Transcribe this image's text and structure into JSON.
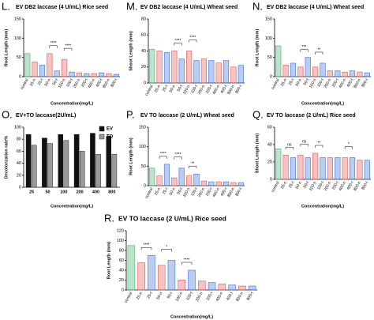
{
  "chart_data": [
    {
      "type": "bar",
      "panel_label": "L.",
      "title": "EV DB2 laccase (4 U/mL) Rice seed",
      "y_label": "Root Length (mm)",
      "x_label": "Concentration(mg/L)",
      "categories": [
        "control",
        "25-n",
        "25-t",
        "50-n",
        "50-t",
        "100-n",
        "100-t",
        "200-n",
        "200-t",
        "400-n",
        "400-t",
        "800-n",
        "800-t"
      ],
      "values": [
        60,
        38,
        30,
        60,
        15,
        45,
        12,
        10,
        8,
        8,
        10,
        8,
        6
      ],
      "colors": [
        "#3cb371",
        "#e05555",
        "#3a6fd8",
        "#e05555",
        "#3a6fd8",
        "#e05555",
        "#3a6fd8",
        "#e05555",
        "#3a6fd8",
        "#e05555",
        "#3a6fd8",
        "#e05555",
        "#3a6fd8"
      ],
      "ylim": [
        0,
        150
      ],
      "yticks": [
        0,
        50,
        100,
        150
      ],
      "annotations": [
        {
          "text": "****",
          "between": [
            3,
            4
          ]
        },
        {
          "text": "****",
          "between": [
            5,
            6
          ]
        }
      ]
    },
    {
      "type": "bar",
      "panel_label": "M.",
      "title": "EV DB2 laccase (4 U/mL) Wheat seed",
      "y_label": "Shoot Length (mm)",
      "categories": [
        "control",
        "25-n",
        "25-t",
        "50-n",
        "50-t",
        "100-n",
        "100-t",
        "200-n",
        "200-t",
        "400-n",
        "400-t",
        "800-n",
        "800-t"
      ],
      "values": [
        42,
        40,
        38,
        40,
        30,
        40,
        28,
        30,
        28,
        25,
        28,
        20,
        22
      ],
      "colors": [
        "#3cb371",
        "#e05555",
        "#3a6fd8",
        "#e05555",
        "#3a6fd8",
        "#e05555",
        "#3a6fd8",
        "#e05555",
        "#3a6fd8",
        "#e05555",
        "#3a6fd8",
        "#e05555",
        "#3a6fd8"
      ],
      "ylim": [
        0,
        80
      ],
      "yticks": [
        0,
        20,
        40,
        60,
        80
      ],
      "annotations": [
        {
          "text": "****",
          "between": [
            3,
            4
          ]
        },
        {
          "text": "****",
          "between": [
            5,
            6
          ]
        }
      ]
    },
    {
      "type": "bar",
      "panel_label": "N.",
      "title": "EV DB2 laccase (4 U/mL) Wheat seed",
      "y_label": "Root Length (mm)",
      "x_label": "Concentration(mg/L)",
      "categories": [
        "control",
        "25-n",
        "25-t",
        "50-n",
        "50-t",
        "100-n",
        "100-t",
        "200-n",
        "200-t",
        "400-n",
        "400-t",
        "800-n",
        "800-t"
      ],
      "values": [
        80,
        30,
        35,
        25,
        50,
        25,
        35,
        15,
        15,
        12,
        15,
        12,
        10
      ],
      "colors": [
        "#3cb371",
        "#e05555",
        "#3a6fd8",
        "#e05555",
        "#3a6fd8",
        "#e05555",
        "#3a6fd8",
        "#e05555",
        "#3a6fd8",
        "#e05555",
        "#3a6fd8",
        "#e05555",
        "#3a6fd8"
      ],
      "ylim": [
        0,
        150
      ],
      "yticks": [
        0,
        50,
        100,
        150
      ],
      "annotations": [
        {
          "text": "***",
          "between": [
            3,
            4
          ]
        },
        {
          "text": "**",
          "between": [
            5,
            6
          ]
        }
      ]
    },
    {
      "type": "grouped_bar",
      "panel_label": "O.",
      "title": "EV+TO laccase(2U/mL)",
      "y_label": "Decolorization rate%",
      "x_label": "Concentration(mg/L)",
      "categories": [
        "25",
        "50",
        "100",
        "200",
        "400",
        "800"
      ],
      "series": [
        {
          "name": "EV",
          "color": "#111111",
          "values": [
            88,
            82,
            88,
            88,
            90,
            85
          ]
        },
        {
          "name": "TO",
          "color": "#9a9a9a",
          "values": [
            70,
            73,
            78,
            60,
            55,
            55
          ]
        }
      ],
      "ylim": [
        0,
        100
      ],
      "yticks": [
        0,
        20,
        40,
        60,
        80,
        100
      ]
    },
    {
      "type": "bar",
      "panel_label": "P.",
      "title": "EV TO laccase (2 U/mL) Wheat seed",
      "y_label": "Root Length (mm)",
      "categories": [
        "control",
        "25-n",
        "25-t",
        "50-n",
        "50-t",
        "100-n",
        "100-t",
        "200-n",
        "200-t",
        "400-n",
        "400-t",
        "800-n",
        "800-t"
      ],
      "values": [
        45,
        25,
        55,
        20,
        45,
        25,
        30,
        12,
        10,
        10,
        10,
        8,
        8
      ],
      "colors": [
        "#3cb371",
        "#e05555",
        "#3a6fd8",
        "#e05555",
        "#3a6fd8",
        "#e05555",
        "#3a6fd8",
        "#e05555",
        "#3a6fd8",
        "#e05555",
        "#3a6fd8",
        "#e05555",
        "#3a6fd8"
      ],
      "ylim": [
        0,
        150
      ],
      "yticks": [
        0,
        50,
        100,
        150
      ],
      "annotations": [
        {
          "text": "****",
          "between": [
            1,
            2
          ]
        },
        {
          "text": "****",
          "between": [
            3,
            4
          ]
        },
        {
          "text": "**",
          "between": [
            5,
            6
          ]
        }
      ]
    },
    {
      "type": "bar",
      "panel_label": "Q.",
      "title": "EV TO laccase (2 U/mL) Rice seed",
      "y_label": "Shoot Length (mm)",
      "x_label": "Concentration(mg/L)",
      "categories": [
        "control",
        "25-n",
        "25-t",
        "50-n",
        "50-t",
        "100-n",
        "100-t",
        "200-n",
        "200-t",
        "400-n",
        "400-t",
        "800-n",
        "800-t"
      ],
      "values": [
        35,
        28,
        25,
        28,
        25,
        30,
        25,
        25,
        25,
        25,
        25,
        22,
        22
      ],
      "colors": [
        "#3cb371",
        "#e05555",
        "#3a6fd8",
        "#e05555",
        "#3a6fd8",
        "#e05555",
        "#3a6fd8",
        "#e05555",
        "#3a6fd8",
        "#e05555",
        "#3a6fd8",
        "#e05555",
        "#3a6fd8"
      ],
      "ylim": [
        0,
        60
      ],
      "yticks": [
        0,
        20,
        40,
        60
      ],
      "annotations": [
        {
          "text": "ns",
          "between": [
            1,
            2
          ]
        },
        {
          "text": "ns",
          "between": [
            3,
            4
          ]
        },
        {
          "text": "**",
          "between": [
            5,
            6
          ]
        },
        {
          "text": "*",
          "between": [
            9,
            10
          ]
        }
      ]
    },
    {
      "type": "bar",
      "panel_label": "R.",
      "title": "EV TO laccase (2 U/mL) Rice seed",
      "y_label": "Root Length (mm)",
      "x_label": "Concentration(mg/L)",
      "categories": [
        "control",
        "25-n",
        "25-t",
        "50-n",
        "50-t",
        "100-n",
        "100-t",
        "200-n",
        "200-t",
        "400-n",
        "400-t",
        "800-n",
        "800-t"
      ],
      "values": [
        90,
        55,
        70,
        50,
        60,
        20,
        40,
        18,
        15,
        12,
        10,
        8,
        8
      ],
      "colors": [
        "#3cb371",
        "#e05555",
        "#3a6fd8",
        "#e05555",
        "#3a6fd8",
        "#e05555",
        "#3a6fd8",
        "#e05555",
        "#3a6fd8",
        "#e05555",
        "#3a6fd8",
        "#e05555",
        "#3a6fd8"
      ],
      "ylim": [
        0,
        120
      ],
      "yticks": [
        0,
        20,
        40,
        60,
        80,
        100,
        120
      ],
      "annotations": [
        {
          "text": "****",
          "between": [
            1,
            2
          ]
        },
        {
          "text": "*",
          "between": [
            3,
            4
          ]
        },
        {
          "text": "****",
          "between": [
            5,
            6
          ]
        }
      ]
    }
  ]
}
